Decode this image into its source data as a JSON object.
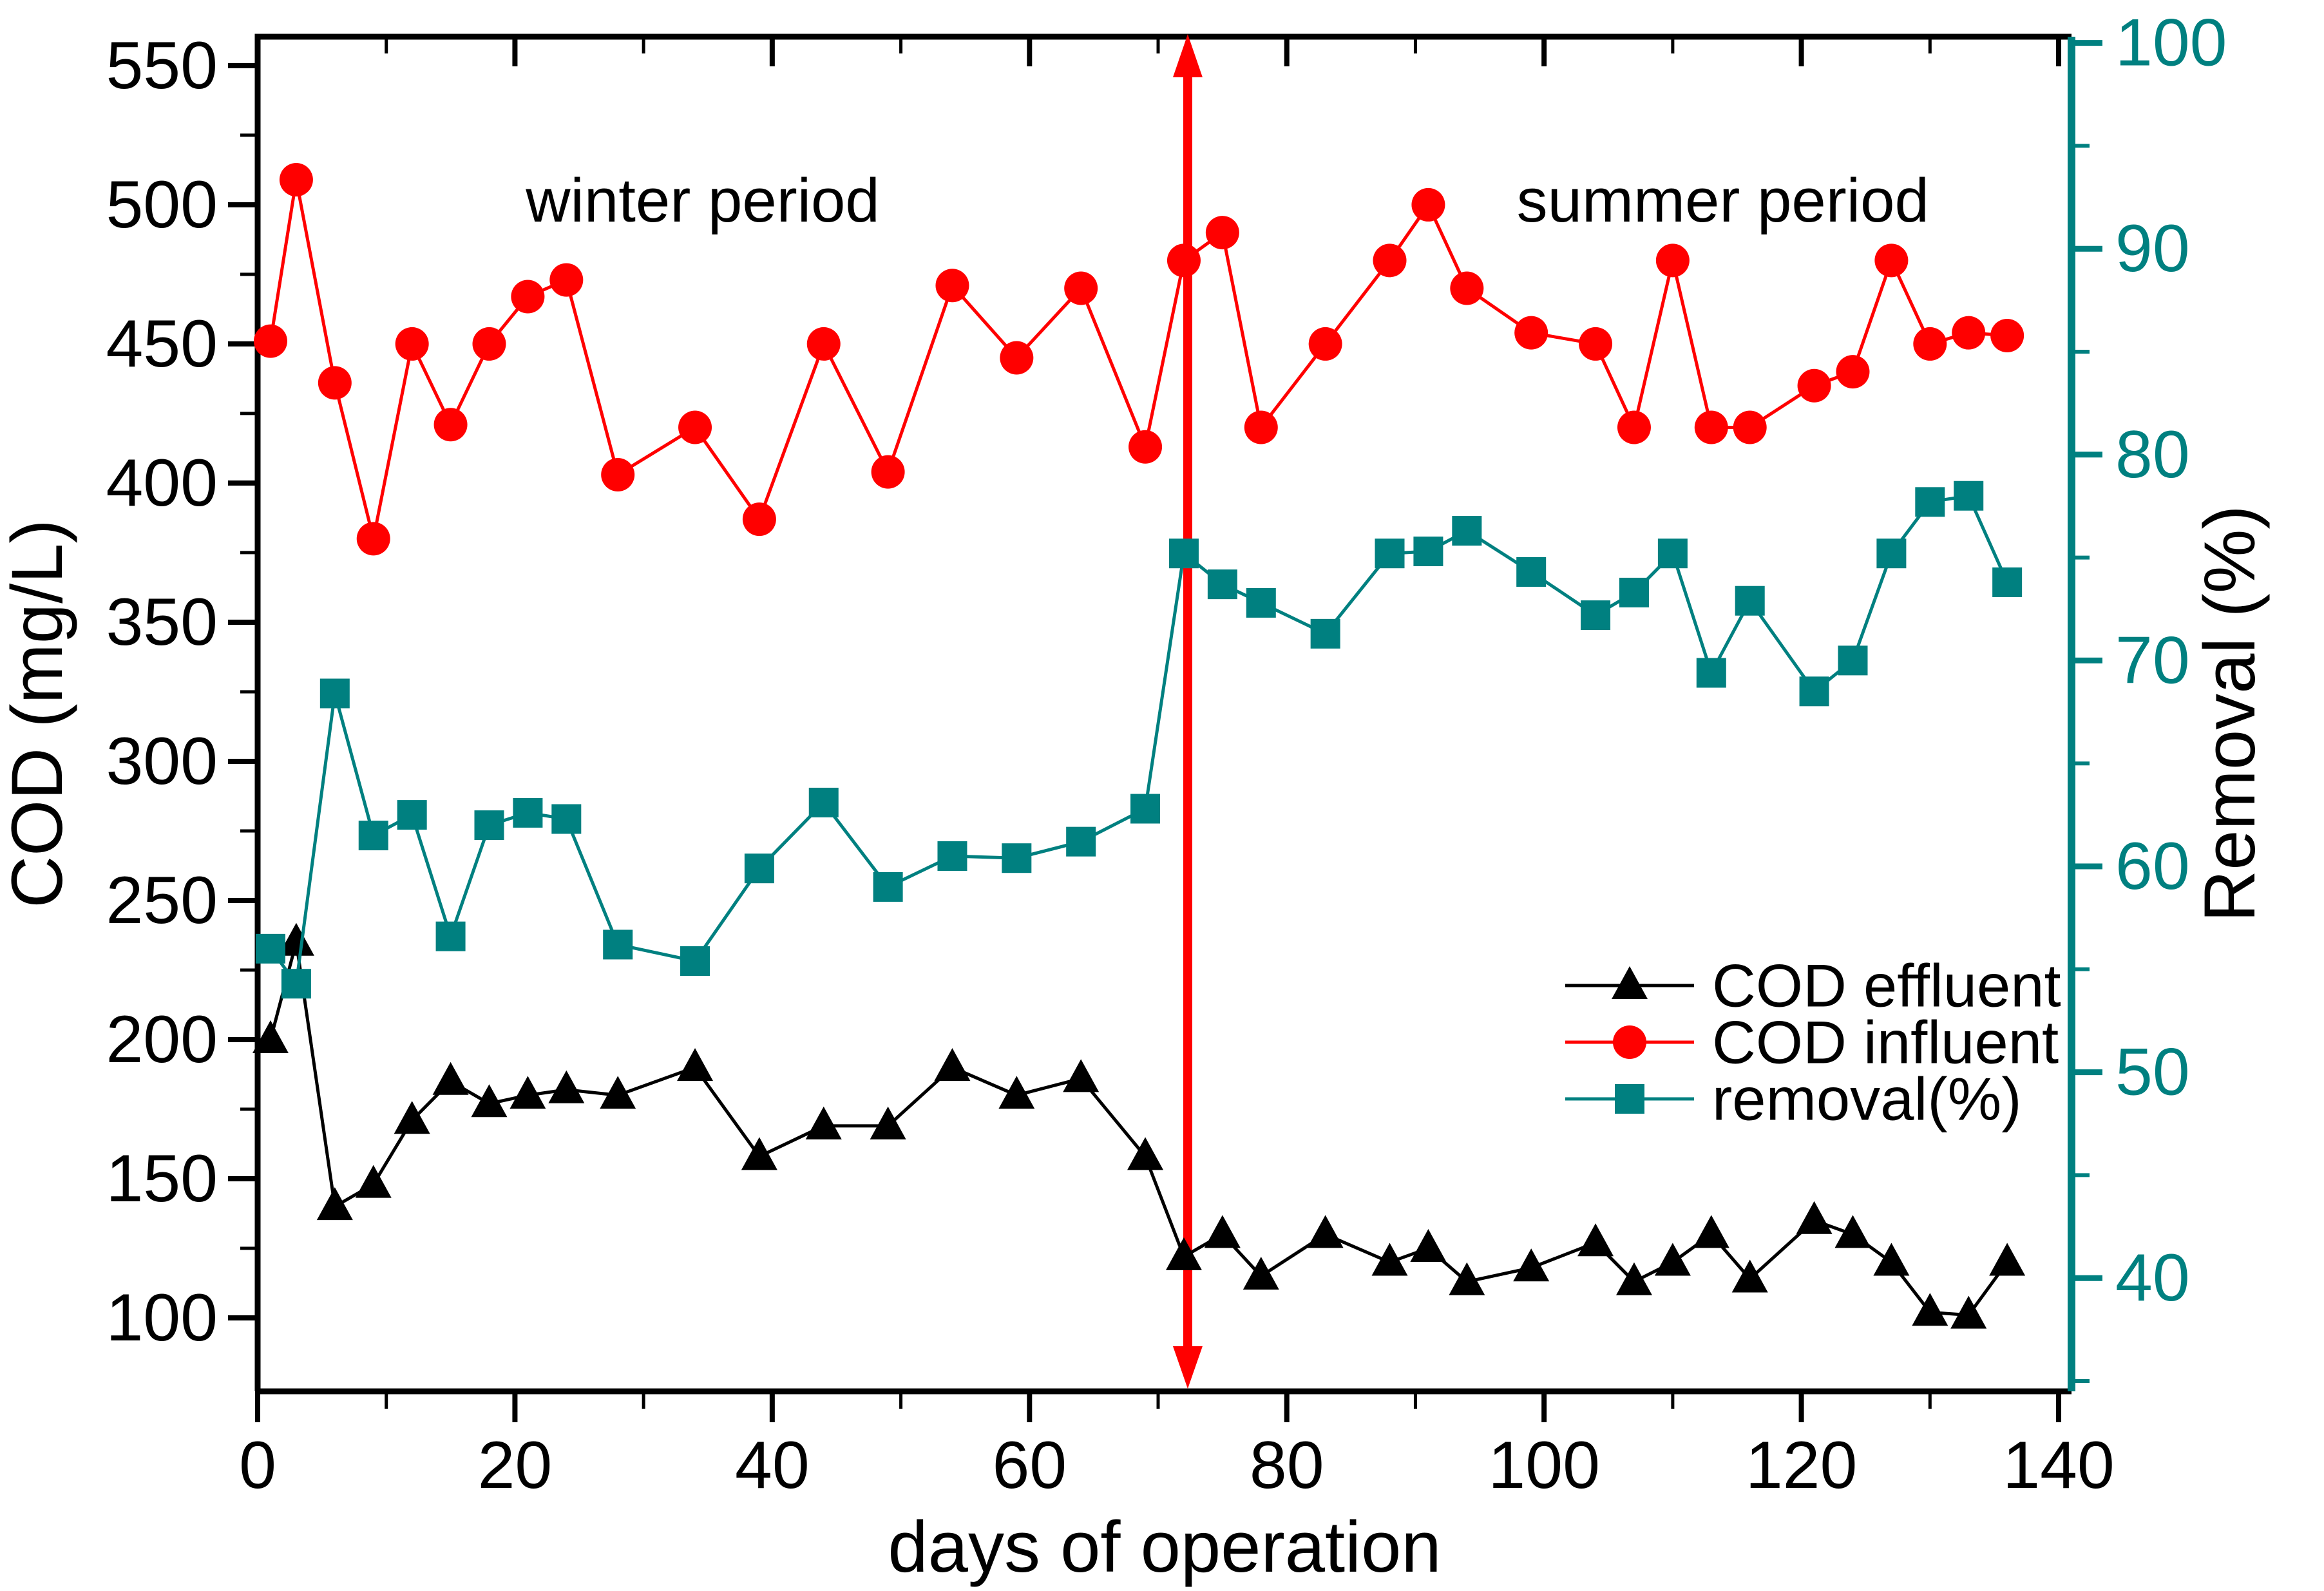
{
  "chart_data": {
    "type": "line",
    "title": "",
    "xlabel": "days of operation",
    "x_axis": {
      "label": "days of operation",
      "ticks": [
        0,
        20,
        40,
        60,
        80,
        100,
        120,
        140
      ],
      "minor_ticks": [
        10,
        30,
        50,
        70,
        90,
        110,
        130
      ],
      "range": [
        0,
        141
      ],
      "color": "#000000"
    },
    "left_axis": {
      "label": "COD (mg/L)",
      "ticks": [
        100,
        150,
        200,
        250,
        300,
        350,
        400,
        450,
        500,
        550
      ],
      "minor_ticks": [
        125,
        175,
        225,
        275,
        325,
        375,
        425,
        475,
        525
      ],
      "range": [
        73.6,
        560.4
      ],
      "color": "#000000"
    },
    "right_axis": {
      "label": "Removal (%)",
      "ticks": [
        40,
        50,
        60,
        70,
        80,
        90,
        100
      ],
      "minor_ticks": [
        35,
        45,
        55,
        65,
        75,
        85,
        95
      ],
      "range": [
        34.5,
        100.3
      ],
      "color": "#008080"
    },
    "x": [
      1,
      3,
      6,
      9,
      12,
      15,
      18,
      21,
      24,
      28,
      34,
      39,
      44,
      49,
      54,
      59,
      64,
      69,
      72,
      75,
      78,
      83,
      88,
      91,
      94,
      99,
      104,
      107,
      110,
      113,
      116,
      121,
      124,
      127,
      130,
      133,
      136
    ],
    "series": [
      {
        "name": "COD effluent",
        "axis": "left",
        "color": "#000000",
        "marker": "triangle",
        "values": [
          200,
          235,
          140,
          148,
          171,
          185,
          177,
          180,
          182,
          180,
          190,
          158,
          169,
          169,
          190,
          180,
          186,
          158,
          122,
          130,
          115,
          130,
          120,
          125,
          113,
          118,
          127,
          113,
          120,
          130,
          114,
          135,
          130,
          120,
          102,
          101,
          120
        ]
      },
      {
        "name": "COD influent",
        "axis": "left",
        "color": "#ff0000",
        "marker": "circle",
        "values": [
          451,
          509,
          436,
          380,
          450,
          421,
          450,
          467,
          473,
          403,
          420,
          387,
          450,
          404,
          471,
          445,
          470,
          413,
          480,
          490,
          420,
          450,
          480,
          500,
          470,
          454,
          450,
          420,
          480,
          420,
          420,
          435,
          440,
          480,
          450,
          454,
          453
        ]
      },
      {
        "name": "removal(%)",
        "axis": "right",
        "color": "#008080",
        "marker": "square",
        "values": [
          56.0,
          54.3,
          68.4,
          61.5,
          62.5,
          56.6,
          62.0,
          62.6,
          62.3,
          56.2,
          55.4,
          59.9,
          63.1,
          59.0,
          60.5,
          60.4,
          61.2,
          62.8,
          75.2,
          73.7,
          72.8,
          71.3,
          75.2,
          75.3,
          76.3,
          74.3,
          72.2,
          73.3,
          75.2,
          69.4,
          72.9,
          68.5,
          70.0,
          75.2,
          77.7,
          78.0,
          73.8
        ]
      }
    ],
    "annotations": [
      {
        "text": "winter period",
        "day": 34.6,
        "cod": 494
      },
      {
        "text": "summer period",
        "day": 113.9,
        "cod": 494
      }
    ],
    "divider": {
      "day": 72.3,
      "color": "#ff0000",
      "style": "double-headed-vertical-arrow"
    },
    "legend_position": "right-middle",
    "grid": "off"
  }
}
